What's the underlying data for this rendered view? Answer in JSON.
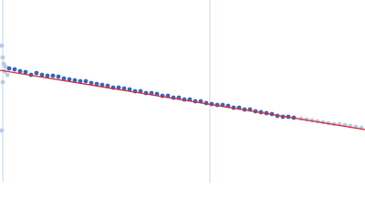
{
  "chart_data": {
    "type": "scatter",
    "xlim": [
      0,
      400
    ],
    "ylim": [
      0,
      200
    ],
    "vlines": [
      3,
      230
    ],
    "vline_color": "#c9d5ea",
    "series": [
      {
        "color": "#3a66b8",
        "x": [
          10,
          16,
          22,
          28,
          34,
          40,
          46,
          52,
          58,
          64,
          70,
          76,
          82,
          88,
          94,
          100,
          106,
          112,
          118,
          124,
          130,
          136,
          142,
          148,
          154,
          160,
          166,
          172,
          178,
          184,
          190,
          196,
          202,
          208,
          214,
          220,
          226,
          232,
          238,
          244,
          250,
          256,
          262,
          268,
          274,
          280,
          286,
          292,
          298,
          304,
          310,
          316,
          322
        ],
        "values": [
          125,
          124,
          122,
          121,
          118,
          120,
          118,
          117,
          117,
          116,
          114,
          113,
          112,
          111,
          111,
          109,
          108,
          107,
          106,
          104,
          104,
          103,
          102,
          100,
          100,
          98,
          98,
          97,
          95,
          95,
          93,
          93,
          91,
          91,
          89,
          89,
          87,
          86,
          85,
          85,
          84,
          82,
          82,
          80,
          80,
          78,
          77,
          76,
          75,
          73,
          72,
          72,
          71
        ]
      },
      {
        "color": "#b8cbe6",
        "x": [
          2,
          3,
          4,
          5,
          3,
          2,
          6,
          8,
          330,
          336,
          342,
          348,
          354,
          360,
          366,
          372,
          378,
          384,
          390,
          396
        ],
        "values": [
          150,
          137,
          130,
          122,
          110,
          57,
          127,
          118,
          70,
          69,
          68,
          67,
          66,
          65,
          64,
          64,
          63,
          62,
          61,
          60
        ]
      }
    ],
    "fit": {
      "color": "#d62b3c",
      "x": [
        0,
        400
      ],
      "values": [
        123,
        58
      ]
    }
  }
}
